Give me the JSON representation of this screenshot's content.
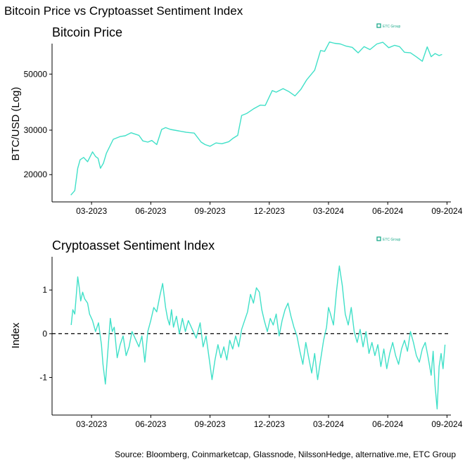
{
  "figure": {
    "title": "Bitcoin Price vs Cryptoasset Sentiment Index",
    "source": "Source: Bloomberg, Coinmarketcap, Glassnode, NilssonHedge, alternative.me, ETC Group",
    "logo_text": "ETC Group",
    "line_color": "#40E0C8",
    "logo_color": "#1BA98A"
  },
  "chart_data": [
    {
      "type": "line",
      "title": "Bitcoin Price",
      "xlabel": "",
      "ylabel": "BTC/USD (Log)",
      "y_scale": "log",
      "ylim": [
        15600,
        66000
      ],
      "yticks": [
        20000,
        30000,
        50000
      ],
      "ytick_labels": [
        "20000",
        "30000",
        "50000"
      ],
      "xlim": [
        0,
        20.2
      ],
      "xticks": [
        2,
        5,
        8,
        11,
        14,
        17,
        20
      ],
      "xtick_labels": [
        "03-2023",
        "06-2023",
        "09-2023",
        "12-2023",
        "03-2024",
        "06-2024",
        "09-2024"
      ],
      "x_unit": "months since 2023-01-01",
      "series": [
        {
          "name": "BTC/USD",
          "x": [
            0.95,
            1.15,
            1.3,
            1.42,
            1.6,
            1.8,
            2.05,
            2.2,
            2.33,
            2.45,
            2.6,
            2.75,
            3.1,
            3.45,
            3.7,
            4.0,
            4.4,
            4.6,
            4.85,
            5.05,
            5.3,
            5.55,
            5.75,
            6.0,
            6.4,
            6.8,
            7.2,
            7.55,
            7.75,
            8.0,
            8.3,
            8.6,
            8.95,
            9.15,
            9.4,
            9.6,
            9.85,
            10.2,
            10.55,
            10.8,
            11.15,
            11.35,
            11.7,
            12.0,
            12.3,
            12.6,
            12.9,
            13.3,
            13.6,
            13.8,
            14.05,
            14.3,
            14.6,
            14.9,
            15.2,
            15.5,
            15.8,
            16.1,
            16.45,
            16.75,
            17.05,
            17.35,
            17.6,
            17.85,
            18.15,
            18.45,
            18.75,
            19.0,
            19.2,
            19.4,
            19.6,
            19.75
          ],
          "values": [
            16600,
            17300,
            21200,
            22900,
            23400,
            22500,
            24600,
            23600,
            23200,
            21200,
            22200,
            24300,
            27600,
            28300,
            28500,
            29300,
            28600,
            27200,
            26900,
            27300,
            26300,
            30200,
            30700,
            30200,
            29800,
            29400,
            29200,
            26900,
            26300,
            25900,
            26700,
            26500,
            27000,
            27800,
            28600,
            34300,
            34900,
            36400,
            37700,
            37600,
            43000,
            42400,
            43800,
            42600,
            41000,
            43500,
            47500,
            51800,
            62000,
            61500,
            67000,
            66200,
            65800,
            64500,
            63800,
            60700,
            64200,
            62500,
            65800,
            66800,
            63600,
            65000,
            64200,
            61000,
            60700,
            58500,
            56200,
            64100,
            58600,
            60300,
            59200,
            59800
          ]
        }
      ]
    },
    {
      "type": "line",
      "title": "Cryptoasset Sentiment Index",
      "xlabel": "",
      "ylabel": "Index",
      "ylim": [
        -1.86,
        1.76
      ],
      "yticks": [
        -1,
        0,
        1
      ],
      "ytick_labels": [
        "-1",
        "0",
        "1"
      ],
      "reference_line": {
        "y": 0,
        "style": "dashed"
      },
      "xlim": [
        0,
        20.2
      ],
      "xticks": [
        2,
        5,
        8,
        11,
        14,
        17,
        20
      ],
      "xtick_labels": [
        "03-2023",
        "06-2023",
        "09-2023",
        "12-2023",
        "03-2024",
        "06-2024",
        "09-2024"
      ],
      "x_unit": "months since 2023-01-01",
      "series": [
        {
          "name": "Sentiment Index",
          "x": [
            0.97,
            1.05,
            1.15,
            1.3,
            1.38,
            1.45,
            1.55,
            1.65,
            1.8,
            1.9,
            2.05,
            2.2,
            2.35,
            2.5,
            2.58,
            2.7,
            2.85,
            2.95,
            3.05,
            3.15,
            3.3,
            3.45,
            3.6,
            3.75,
            3.9,
            4.05,
            4.25,
            4.4,
            4.55,
            4.7,
            4.85,
            5.0,
            5.15,
            5.3,
            5.45,
            5.6,
            5.75,
            5.85,
            5.95,
            6.05,
            6.15,
            6.3,
            6.45,
            6.6,
            6.75,
            6.9,
            7.1,
            7.3,
            7.5,
            7.65,
            7.8,
            7.95,
            8.1,
            8.25,
            8.4,
            8.55,
            8.7,
            8.85,
            9.0,
            9.15,
            9.3,
            9.45,
            9.6,
            9.75,
            9.9,
            10.05,
            10.2,
            10.35,
            10.5,
            10.62,
            10.75,
            10.9,
            11.05,
            11.2,
            11.35,
            11.5,
            11.65,
            11.8,
            11.95,
            12.1,
            12.25,
            12.4,
            12.55,
            12.7,
            12.85,
            13.0,
            13.15,
            13.3,
            13.45,
            13.6,
            13.75,
            13.9,
            14.0,
            14.1,
            14.25,
            14.4,
            14.55,
            14.7,
            14.85,
            15.0,
            15.15,
            15.3,
            15.45,
            15.6,
            15.75,
            15.9,
            16.05,
            16.2,
            16.35,
            16.5,
            16.65,
            16.8,
            16.95,
            17.1,
            17.25,
            17.4,
            17.55,
            17.7,
            17.85,
            18.0,
            18.15,
            18.3,
            18.45,
            18.6,
            18.75,
            18.9,
            19.05,
            19.2,
            19.3,
            19.4,
            19.5,
            19.6,
            19.7,
            19.8,
            19.9
          ],
          "values": [
            0.2,
            0.55,
            0.45,
            1.3,
            1.05,
            0.75,
            0.95,
            0.8,
            0.7,
            0.45,
            0.3,
            0.05,
            0.25,
            -0.25,
            -0.7,
            -1.15,
            -0.25,
            0.35,
            0.05,
            0.15,
            -0.55,
            -0.25,
            -0.05,
            -0.5,
            -0.3,
            0.05,
            -0.15,
            -0.3,
            -0.05,
            -0.65,
            0.05,
            0.3,
            0.6,
            0.5,
            0.85,
            1.15,
            0.6,
            0.35,
            0.2,
            0.55,
            0.15,
            0.4,
            0.0,
            0.35,
            0.05,
            0.3,
            0.1,
            -0.1,
            0.25,
            -0.3,
            -0.05,
            -0.55,
            -1.05,
            -0.6,
            -0.25,
            -0.55,
            -0.3,
            -0.6,
            -0.15,
            -0.35,
            -0.05,
            -0.3,
            0.1,
            0.3,
            0.5,
            0.9,
            0.7,
            1.05,
            0.95,
            0.55,
            0.3,
            0.05,
            0.35,
            0.2,
            0.45,
            -0.05,
            0.3,
            0.55,
            0.7,
            0.4,
            0.15,
            -0.05,
            -0.4,
            -0.7,
            -0.2,
            -0.55,
            -0.9,
            -0.45,
            -1.05,
            -0.6,
            -0.15,
            0.15,
            0.6,
            0.45,
            0.2,
            0.95,
            1.55,
            1.1,
            0.45,
            0.2,
            0.6,
            0.05,
            -0.2,
            0.1,
            -0.3,
            0.05,
            -0.45,
            -0.2,
            -0.5,
            -0.25,
            -0.75,
            -0.35,
            -0.8,
            -0.45,
            -0.2,
            -0.5,
            -0.7,
            -0.35,
            -0.15,
            -0.4,
            0.05,
            -0.2,
            -0.5,
            -0.65,
            -0.35,
            -0.2,
            -0.55,
            -0.95,
            -0.4,
            -1.2,
            -1.72,
            -0.75,
            -0.45,
            -0.8,
            -0.25
          ]
        }
      ]
    }
  ]
}
